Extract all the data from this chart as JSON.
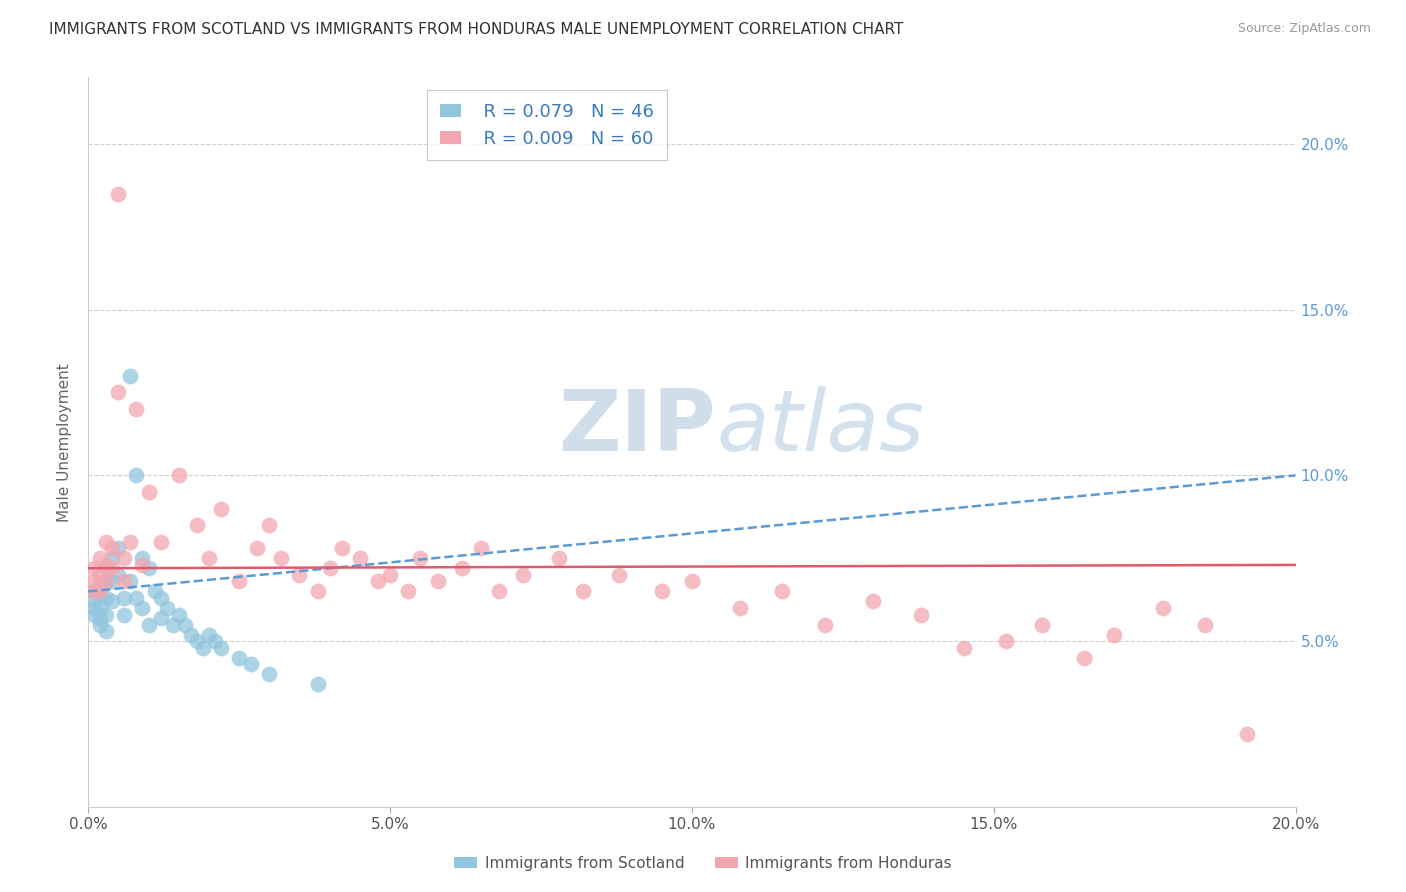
{
  "title": "IMMIGRANTS FROM SCOTLAND VS IMMIGRANTS FROM HONDURAS MALE UNEMPLOYMENT CORRELATION CHART",
  "source": "Source: ZipAtlas.com",
  "ylabel": "Male Unemployment",
  "xlim": [
    0.0,
    0.2
  ],
  "ylim": [
    0.0,
    0.22
  ],
  "yticks": [
    0.05,
    0.1,
    0.15,
    0.2
  ],
  "xticks": [
    0.0,
    0.05,
    0.1,
    0.15,
    0.2
  ],
  "xtick_labels": [
    "0.0%",
    "5.0%",
    "10.0%",
    "15.0%",
    "20.0%"
  ],
  "ytick_labels": [
    "5.0%",
    "10.0%",
    "15.0%",
    "20.0%"
  ],
  "legend_label_1": "Immigrants from Scotland",
  "legend_label_2": "Immigrants from Honduras",
  "r1": "0.079",
  "n1": "46",
  "r2": "0.009",
  "n2": "60",
  "color_scotland": "#92c5de",
  "color_honduras": "#f4a6b0",
  "color_line_scotland": "#5b9bd5",
  "color_line_honduras": "#e05a6e",
  "watermark_zip": "ZIP",
  "watermark_atlas": "atlas",
  "scotland_x": [
    0.001,
    0.001,
    0.001,
    0.001,
    0.002,
    0.002,
    0.002,
    0.002,
    0.002,
    0.003,
    0.003,
    0.003,
    0.003,
    0.003,
    0.004,
    0.004,
    0.004,
    0.005,
    0.005,
    0.006,
    0.006,
    0.007,
    0.007,
    0.008,
    0.008,
    0.009,
    0.009,
    0.01,
    0.01,
    0.011,
    0.012,
    0.012,
    0.013,
    0.014,
    0.015,
    0.016,
    0.017,
    0.018,
    0.019,
    0.02,
    0.021,
    0.022,
    0.025,
    0.027,
    0.03,
    0.038
  ],
  "scotland_y": [
    0.065,
    0.062,
    0.06,
    0.058,
    0.067,
    0.064,
    0.06,
    0.057,
    0.055,
    0.072,
    0.068,
    0.063,
    0.058,
    0.053,
    0.075,
    0.068,
    0.062,
    0.078,
    0.07,
    0.063,
    0.058,
    0.13,
    0.068,
    0.1,
    0.063,
    0.075,
    0.06,
    0.072,
    0.055,
    0.065,
    0.063,
    0.057,
    0.06,
    0.055,
    0.058,
    0.055,
    0.052,
    0.05,
    0.048,
    0.052,
    0.05,
    0.048,
    0.045,
    0.043,
    0.04,
    0.037
  ],
  "honduras_x": [
    0.001,
    0.001,
    0.001,
    0.002,
    0.002,
    0.002,
    0.003,
    0.003,
    0.003,
    0.004,
    0.004,
    0.005,
    0.005,
    0.006,
    0.006,
    0.007,
    0.008,
    0.009,
    0.01,
    0.012,
    0.015,
    0.018,
    0.02,
    0.022,
    0.025,
    0.028,
    0.03,
    0.032,
    0.035,
    0.038,
    0.04,
    0.042,
    0.045,
    0.048,
    0.05,
    0.053,
    0.055,
    0.058,
    0.062,
    0.065,
    0.068,
    0.072,
    0.078,
    0.082,
    0.088,
    0.095,
    0.1,
    0.108,
    0.115,
    0.122,
    0.13,
    0.138,
    0.145,
    0.152,
    0.158,
    0.165,
    0.17,
    0.178,
    0.185,
    0.192
  ],
  "honduras_y": [
    0.072,
    0.068,
    0.065,
    0.075,
    0.07,
    0.065,
    0.08,
    0.073,
    0.068,
    0.078,
    0.072,
    0.185,
    0.125,
    0.075,
    0.068,
    0.08,
    0.12,
    0.073,
    0.095,
    0.08,
    0.1,
    0.085,
    0.075,
    0.09,
    0.068,
    0.078,
    0.085,
    0.075,
    0.07,
    0.065,
    0.072,
    0.078,
    0.075,
    0.068,
    0.07,
    0.065,
    0.075,
    0.068,
    0.072,
    0.078,
    0.065,
    0.07,
    0.075,
    0.065,
    0.07,
    0.065,
    0.068,
    0.06,
    0.065,
    0.055,
    0.062,
    0.058,
    0.048,
    0.05,
    0.055,
    0.045,
    0.052,
    0.06,
    0.055,
    0.022
  ]
}
